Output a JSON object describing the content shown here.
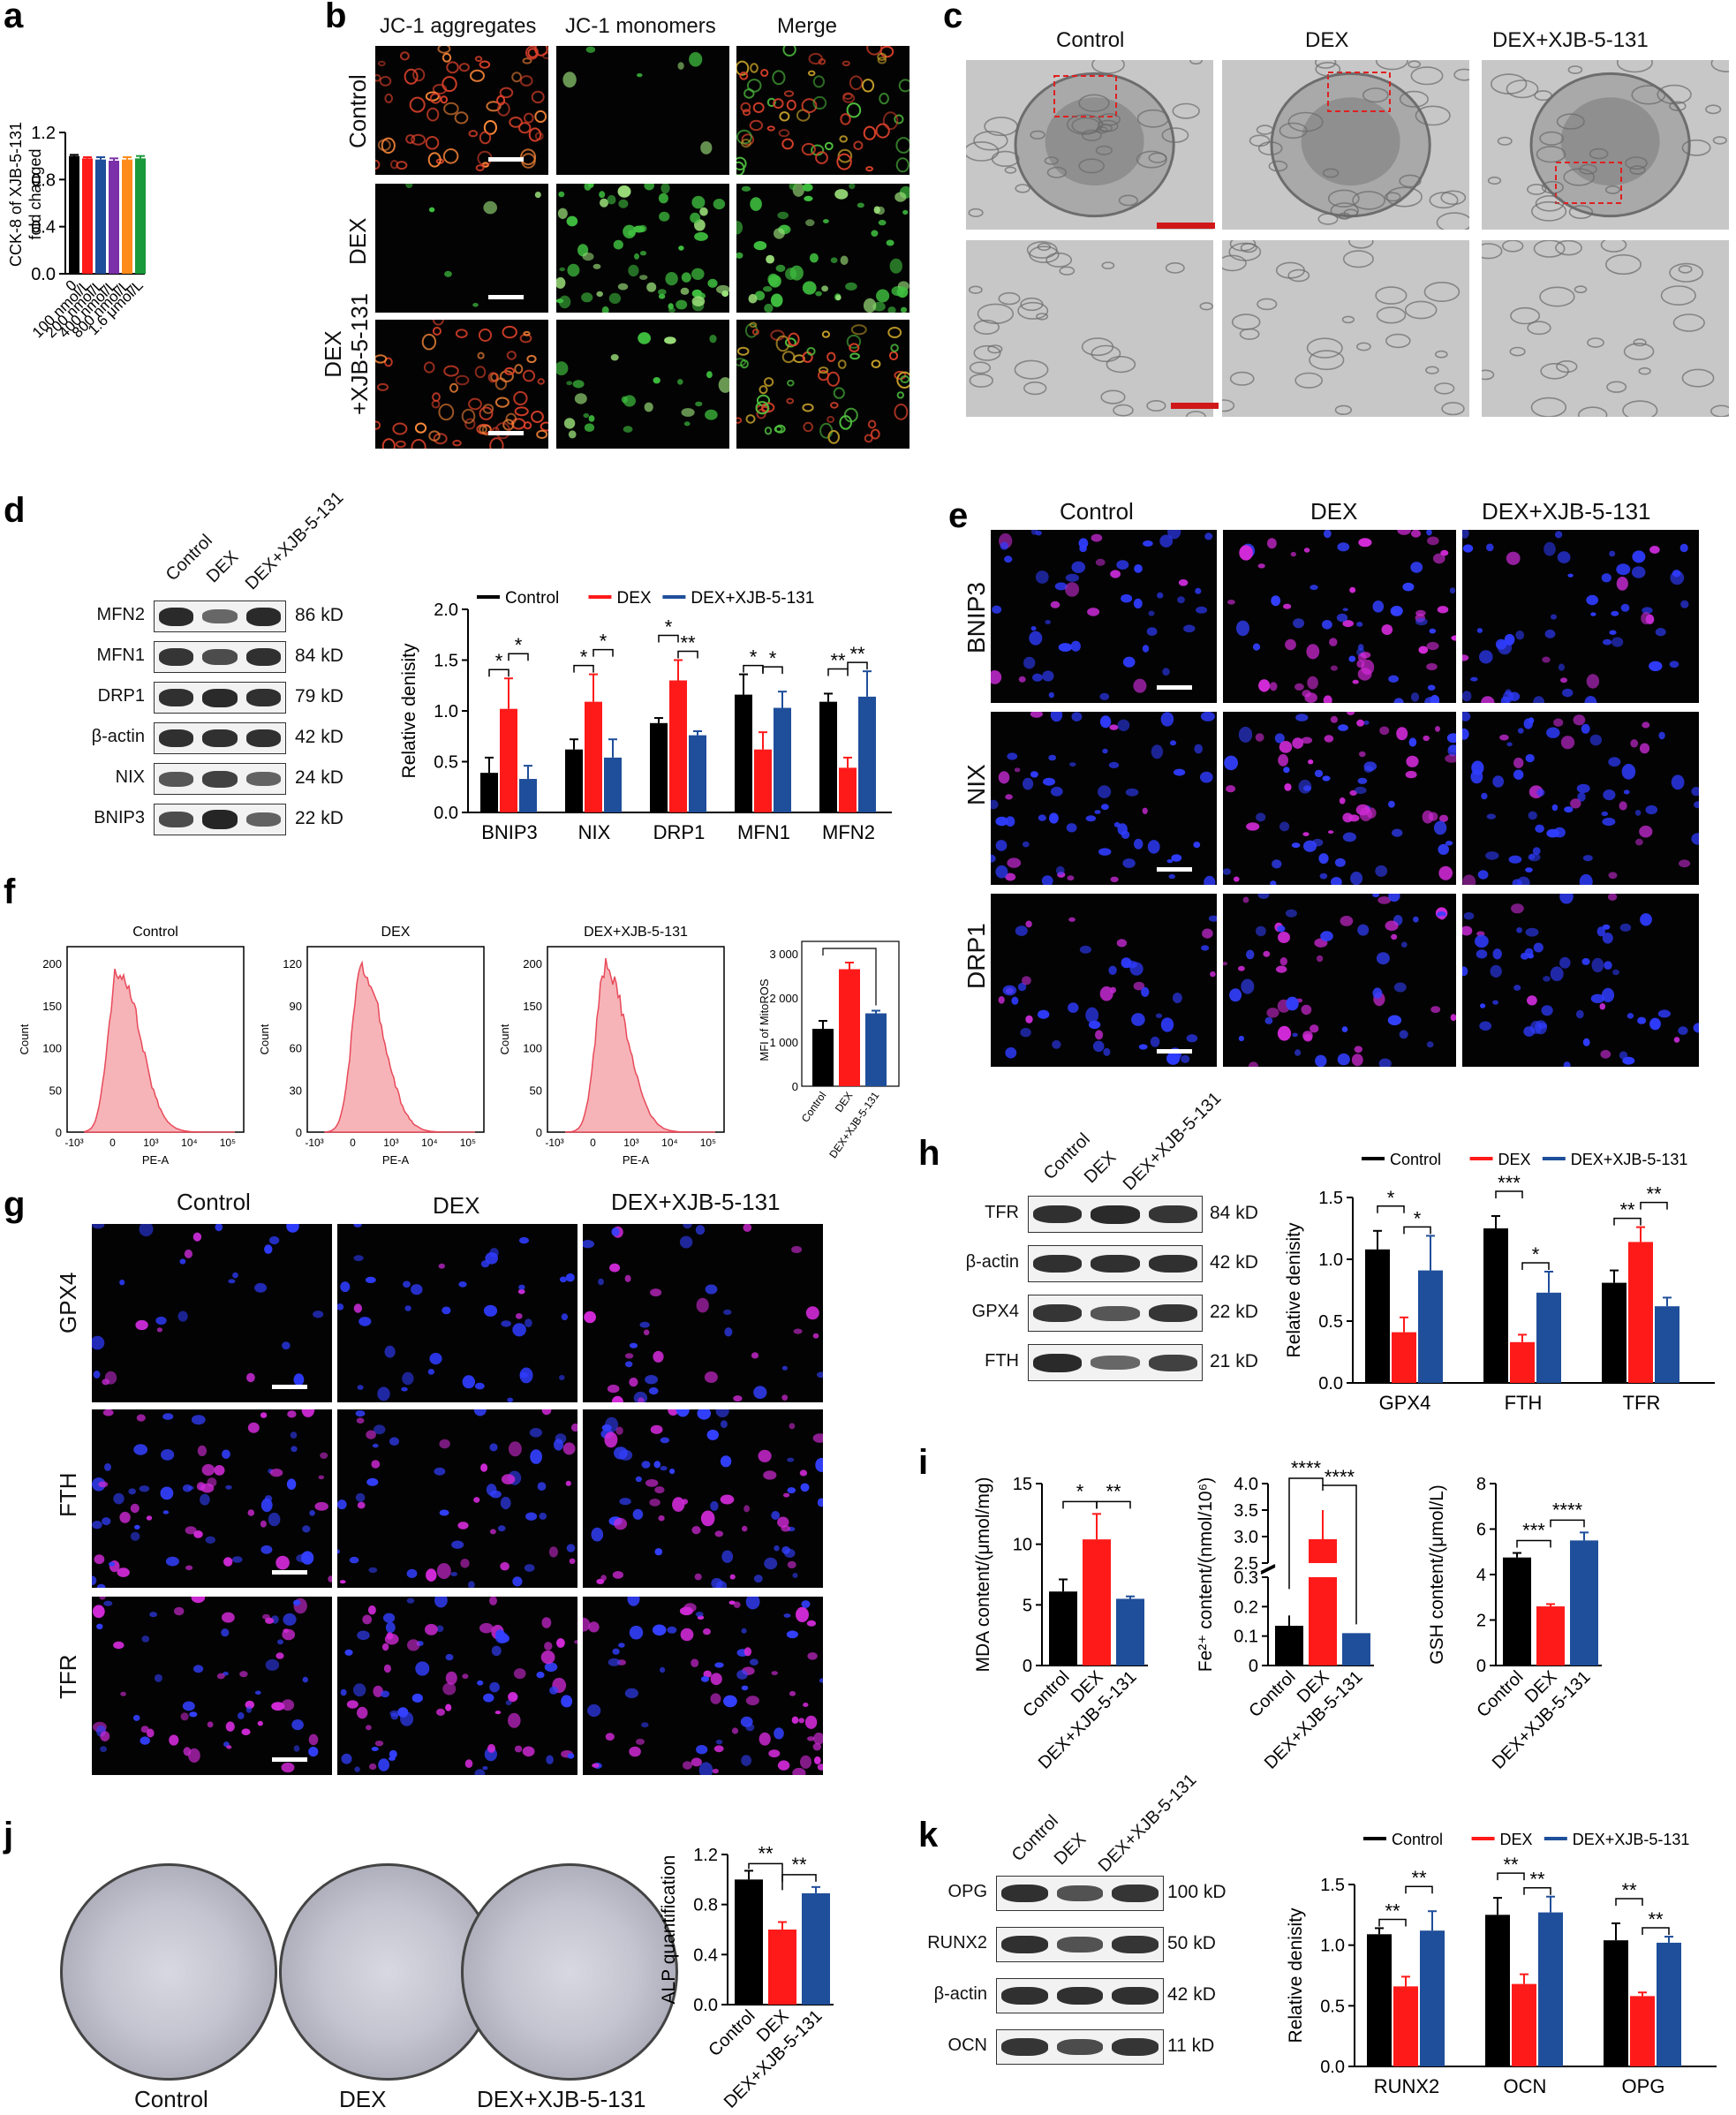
{
  "panels": {
    "a": {
      "letter": "a",
      "ylabel": "CCK-8 of XJB-5-131 fold changed",
      "yticks": [
        "0.0",
        "0.4",
        "0.8",
        "1.2"
      ],
      "categories": [
        "0",
        "100 nmol/L",
        "200 nmol/L",
        "400 nmol/L",
        "800 nmol/L",
        "1.6 μmol/L"
      ],
      "values": [
        1.0,
        0.98,
        0.97,
        0.96,
        0.97,
        0.98
      ],
      "errors": [
        0.01,
        0.01,
        0.02,
        0.02,
        0.02,
        0.02
      ],
      "colors": [
        "#000000",
        "#ff1a1a",
        "#1f4e9a",
        "#7b2fa8",
        "#ff8c1a",
        "#1a9a3a"
      ],
      "ylim": [
        0,
        1.2
      ]
    },
    "b": {
      "letter": "b",
      "columns": [
        "JC-1 aggregates",
        "JC-1 monomers",
        "Merge"
      ],
      "rows": [
        "Control",
        "DEX",
        "DEX\n+XJB-5-131"
      ]
    },
    "c": {
      "letter": "c",
      "columns": [
        "Control",
        "DEX",
        "DEX+XJB-5-131"
      ]
    },
    "d": {
      "letter": "d",
      "wb_columns": [
        "Control",
        "DEX",
        "DEX+XJB-5-131"
      ],
      "wb_rows": [
        {
          "name": "MFN2",
          "kd": "86 kD"
        },
        {
          "name": "MFN1",
          "kd": "84 kD"
        },
        {
          "name": "DRP1",
          "kd": "79 kD"
        },
        {
          "name": "β-actin",
          "kd": "42 kD"
        },
        {
          "name": "NIX",
          "kd": "24 kD"
        },
        {
          "name": "BNIP3",
          "kd": "22 kD"
        }
      ]
    },
    "e": {
      "letter": "e",
      "columns": [
        "Control",
        "DEX",
        "DEX+XJB-5-131"
      ],
      "rows": [
        "BNIP3",
        "NIX",
        "DRP1"
      ]
    },
    "f": {
      "letter": "f",
      "histograms": [
        {
          "title": "Control",
          "yticks": [
            "0",
            "50",
            "100",
            "150",
            "200"
          ],
          "xlabel": "PE-A",
          "ylabel": "Count"
        },
        {
          "title": "DEX",
          "yticks": [
            "0",
            "30",
            "60",
            "90",
            "120"
          ],
          "xlabel": "PE-A",
          "ylabel": "Count"
        },
        {
          "title": "DEX+XJB-5-131",
          "yticks": [
            "0",
            "50",
            "100",
            "150",
            "200"
          ],
          "xlabel": "PE-A",
          "ylabel": "Count"
        }
      ],
      "xticks": [
        "-10³",
        "0",
        "10³",
        "10⁴",
        "10⁵"
      ],
      "mfi_ylabel": "MFI of MitoROS",
      "mfi_yticks": [
        "0",
        "1 000",
        "2 000",
        "3 000"
      ]
    },
    "g": {
      "letter": "g",
      "columns": [
        "Control",
        "DEX",
        "DEX+XJB-5-131"
      ],
      "rows": [
        "GPX4",
        "FTH",
        "TFR"
      ]
    },
    "h": {
      "letter": "h",
      "wb_columns": [
        "Control",
        "DEX",
        "DEX+XJB-5-131"
      ],
      "wb_rows": [
        {
          "name": "TFR",
          "kd": "84 kD"
        },
        {
          "name": "β-actin",
          "kd": "42 kD"
        },
        {
          "name": "GPX4",
          "kd": "22 kD"
        },
        {
          "name": "FTH",
          "kd": "21 kD"
        }
      ]
    },
    "i": {
      "letter": "i"
    },
    "j": {
      "letter": "j",
      "plates": [
        "Control",
        "DEX",
        "DEX+XJB-5-131"
      ]
    },
    "k": {
      "letter": "k",
      "wb_columns": [
        "Control",
        "DEX",
        "DEX+XJB-5-131"
      ],
      "wb_rows": [
        {
          "name": "OPG",
          "kd": "100 kD"
        },
        {
          "name": "RUNX2",
          "kd": "50 kD"
        },
        {
          "name": "β-actin",
          "kd": "42 kD"
        },
        {
          "name": "OCN",
          "kd": "11 kD"
        }
      ]
    }
  },
  "chart_data": [
    {
      "id": "a",
      "type": "bar",
      "ylabel": "CCK-8 of XJB-5-131 fold changed",
      "categories": [
        "0",
        "100 nmol/L",
        "200 nmol/L",
        "400 nmol/L",
        "800 nmol/L",
        "1.6 μmol/L"
      ],
      "values": [
        1.0,
        0.98,
        0.97,
        0.96,
        0.97,
        0.98
      ],
      "ylim": [
        0,
        1.2
      ]
    },
    {
      "id": "d",
      "type": "bar",
      "ylabel": "Relative denisity",
      "categories": [
        "BNIP3",
        "NIX",
        "DRP1",
        "MFN1",
        "MFN2"
      ],
      "series": [
        {
          "name": "Control",
          "color": "#000000",
          "values": [
            0.39,
            0.62,
            0.88,
            1.16,
            1.09
          ],
          "errors": [
            0.15,
            0.1,
            0.05,
            0.2,
            0.08
          ]
        },
        {
          "name": "DEX",
          "color": "#ff1a1a",
          "values": [
            1.02,
            1.09,
            1.3,
            0.62,
            0.44
          ],
          "errors": [
            0.3,
            0.27,
            0.2,
            0.17,
            0.1
          ]
        },
        {
          "name": "DEX+XJB-5-131",
          "color": "#1f4e9a",
          "values": [
            0.33,
            0.54,
            0.76,
            1.03,
            1.14
          ],
          "errors": [
            0.13,
            0.18,
            0.04,
            0.16,
            0.25
          ]
        }
      ],
      "ylim": [
        0,
        2.0
      ],
      "yticks": [
        "0.0",
        "0.5",
        "1.0",
        "1.5",
        "2.0"
      ],
      "sig": [
        {
          "cat": 0,
          "a": 0,
          "b": 1,
          "t": "*",
          "lvl": 0
        },
        {
          "cat": 0,
          "a": 1,
          "b": 2,
          "t": "*",
          "lvl": 1
        },
        {
          "cat": 1,
          "a": 0,
          "b": 1,
          "t": "*",
          "lvl": 0
        },
        {
          "cat": 1,
          "a": 1,
          "b": 2,
          "t": "*",
          "lvl": 1
        },
        {
          "cat": 2,
          "a": 0,
          "b": 1,
          "t": "*",
          "lvl": 1
        },
        {
          "cat": 2,
          "a": 1,
          "b": 2,
          "t": "**",
          "lvl": 0
        },
        {
          "cat": 3,
          "a": 0,
          "b": 1,
          "t": "*",
          "lvl": 0
        },
        {
          "cat": 3,
          "a": 1,
          "b": 2,
          "t": "*",
          "lvl": 1
        },
        {
          "cat": 4,
          "a": 0,
          "b": 1,
          "t": "**",
          "lvl": 1
        },
        {
          "cat": 4,
          "a": 1,
          "b": 2,
          "t": "**",
          "lvl": 0
        }
      ]
    },
    {
      "id": "f",
      "type": "bar",
      "ylabel": "MFI of MitoROS",
      "categories": [
        "Control",
        "DEX",
        "DEX+XJB-5-131"
      ],
      "values": [
        1300,
        2650,
        1650
      ],
      "errors": [
        180,
        150,
        60
      ],
      "colors": [
        "#000000",
        "#ff1a1a",
        "#1f4e9a"
      ],
      "ylim": [
        0,
        3000
      ]
    },
    {
      "id": "h",
      "type": "bar",
      "ylabel": "Relative denisity",
      "categories": [
        "GPX4",
        "FTH",
        "TFR"
      ],
      "series": [
        {
          "name": "Control",
          "color": "#000000",
          "values": [
            1.08,
            1.25,
            0.81
          ],
          "errors": [
            0.15,
            0.1,
            0.1
          ]
        },
        {
          "name": "DEX",
          "color": "#ff1a1a",
          "values": [
            0.41,
            0.33,
            1.14
          ],
          "errors": [
            0.12,
            0.06,
            0.12
          ]
        },
        {
          "name": "DEX+XJB-5-131",
          "color": "#1f4e9a",
          "values": [
            0.91,
            0.73,
            0.62
          ],
          "errors": [
            0.28,
            0.17,
            0.07
          ]
        }
      ],
      "ylim": [
        0,
        1.5
      ],
      "yticks": [
        "0.0",
        "0.5",
        "1.0",
        "1.5"
      ],
      "sig": [
        {
          "cat": 0,
          "a": 0,
          "b": 1,
          "t": "*",
          "lvl": 1
        },
        {
          "cat": 0,
          "a": 1,
          "b": 2,
          "t": "*",
          "lvl": 0
        },
        {
          "cat": 1,
          "a": 0,
          "b": 1,
          "t": "***",
          "lvl": 1
        },
        {
          "cat": 1,
          "a": 1,
          "b": 2,
          "t": "*",
          "lvl": 0
        },
        {
          "cat": 2,
          "a": 0,
          "b": 1,
          "t": "**",
          "lvl": 0
        },
        {
          "cat": 2,
          "a": 1,
          "b": 2,
          "t": "**",
          "lvl": 1
        }
      ]
    },
    {
      "id": "i-mda",
      "type": "bar",
      "ylabel": "MDA content/(μmol/mg)",
      "categories": [
        "Control",
        "DEX",
        "DEX+XJB-5-131"
      ],
      "values": [
        6.1,
        10.4,
        5.5
      ],
      "errors": [
        1.0,
        2.1,
        0.2
      ],
      "ylim": [
        0,
        15
      ],
      "yticks": [
        "0",
        "5",
        "10",
        "15"
      ]
    },
    {
      "id": "i-fe",
      "type": "bar",
      "ylabel": "Fe²⁺ content/(nmol/10⁶)",
      "categories": [
        "Control",
        "DEX",
        "DEX+XJB-5-131"
      ],
      "values": [
        0.135,
        2.95,
        0.11
      ],
      "errors": [
        0.035,
        0.55,
        0.01
      ],
      "yticks_low": [
        "0",
        "0.1",
        "0.2",
        "0.3"
      ],
      "yticks_high": [
        "2.5",
        "3.0",
        "3.5",
        "4.0"
      ]
    },
    {
      "id": "i-gsh",
      "type": "bar",
      "ylabel": "GSH content/(μmol/L)",
      "categories": [
        "Control",
        "DEX",
        "DEX+XJB-5-131"
      ],
      "values": [
        4.75,
        2.6,
        5.5
      ],
      "errors": [
        0.2,
        0.1,
        0.35
      ],
      "ylim": [
        0,
        8
      ],
      "yticks": [
        "0",
        "2",
        "4",
        "6",
        "8"
      ]
    },
    {
      "id": "j",
      "type": "bar",
      "ylabel": "ALP quantification",
      "categories": [
        "Control",
        "DEX",
        "DEX+XJB-5-131"
      ],
      "values": [
        1.0,
        0.6,
        0.89
      ],
      "errors": [
        0.07,
        0.06,
        0.05
      ],
      "ylim": [
        0,
        1.2
      ],
      "yticks": [
        "0.0",
        "0.4",
        "0.8",
        "1.2"
      ]
    },
    {
      "id": "k",
      "type": "bar",
      "ylabel": "Relative denisity",
      "categories": [
        "RUNX2",
        "OCN",
        "OPG"
      ],
      "series": [
        {
          "name": "Control",
          "color": "#000000",
          "values": [
            1.09,
            1.25,
            1.04
          ],
          "errors": [
            0.05,
            0.14,
            0.14
          ]
        },
        {
          "name": "DEX",
          "color": "#ff1a1a",
          "values": [
            0.66,
            0.68,
            0.58
          ],
          "errors": [
            0.08,
            0.08,
            0.03
          ]
        },
        {
          "name": "DEX+XJB-5-131",
          "color": "#1f4e9a",
          "values": [
            1.12,
            1.27,
            1.02
          ],
          "errors": [
            0.16,
            0.13,
            0.05
          ]
        }
      ],
      "ylim": [
        0,
        1.5
      ],
      "yticks": [
        "0.0",
        "0.5",
        "1.0",
        "1.5"
      ],
      "sig": [
        {
          "cat": 0,
          "a": 0,
          "b": 1,
          "t": "**",
          "lvl": 0
        },
        {
          "cat": 0,
          "a": 1,
          "b": 2,
          "t": "**",
          "lvl": 1
        },
        {
          "cat": 1,
          "a": 0,
          "b": 1,
          "t": "**",
          "lvl": 1
        },
        {
          "cat": 1,
          "a": 1,
          "b": 2,
          "t": "**",
          "lvl": 0
        },
        {
          "cat": 2,
          "a": 0,
          "b": 1,
          "t": "**",
          "lvl": 1
        },
        {
          "cat": 2,
          "a": 1,
          "b": 2,
          "t": "**",
          "lvl": 0
        }
      ]
    }
  ],
  "sig_i": {
    "mda": [
      "*",
      "**"
    ],
    "fe": [
      "****",
      "****"
    ],
    "gsh": [
      "***",
      "****"
    ]
  },
  "legend_labels": [
    "Control",
    "DEX",
    "DEX+XJB-5-131"
  ]
}
